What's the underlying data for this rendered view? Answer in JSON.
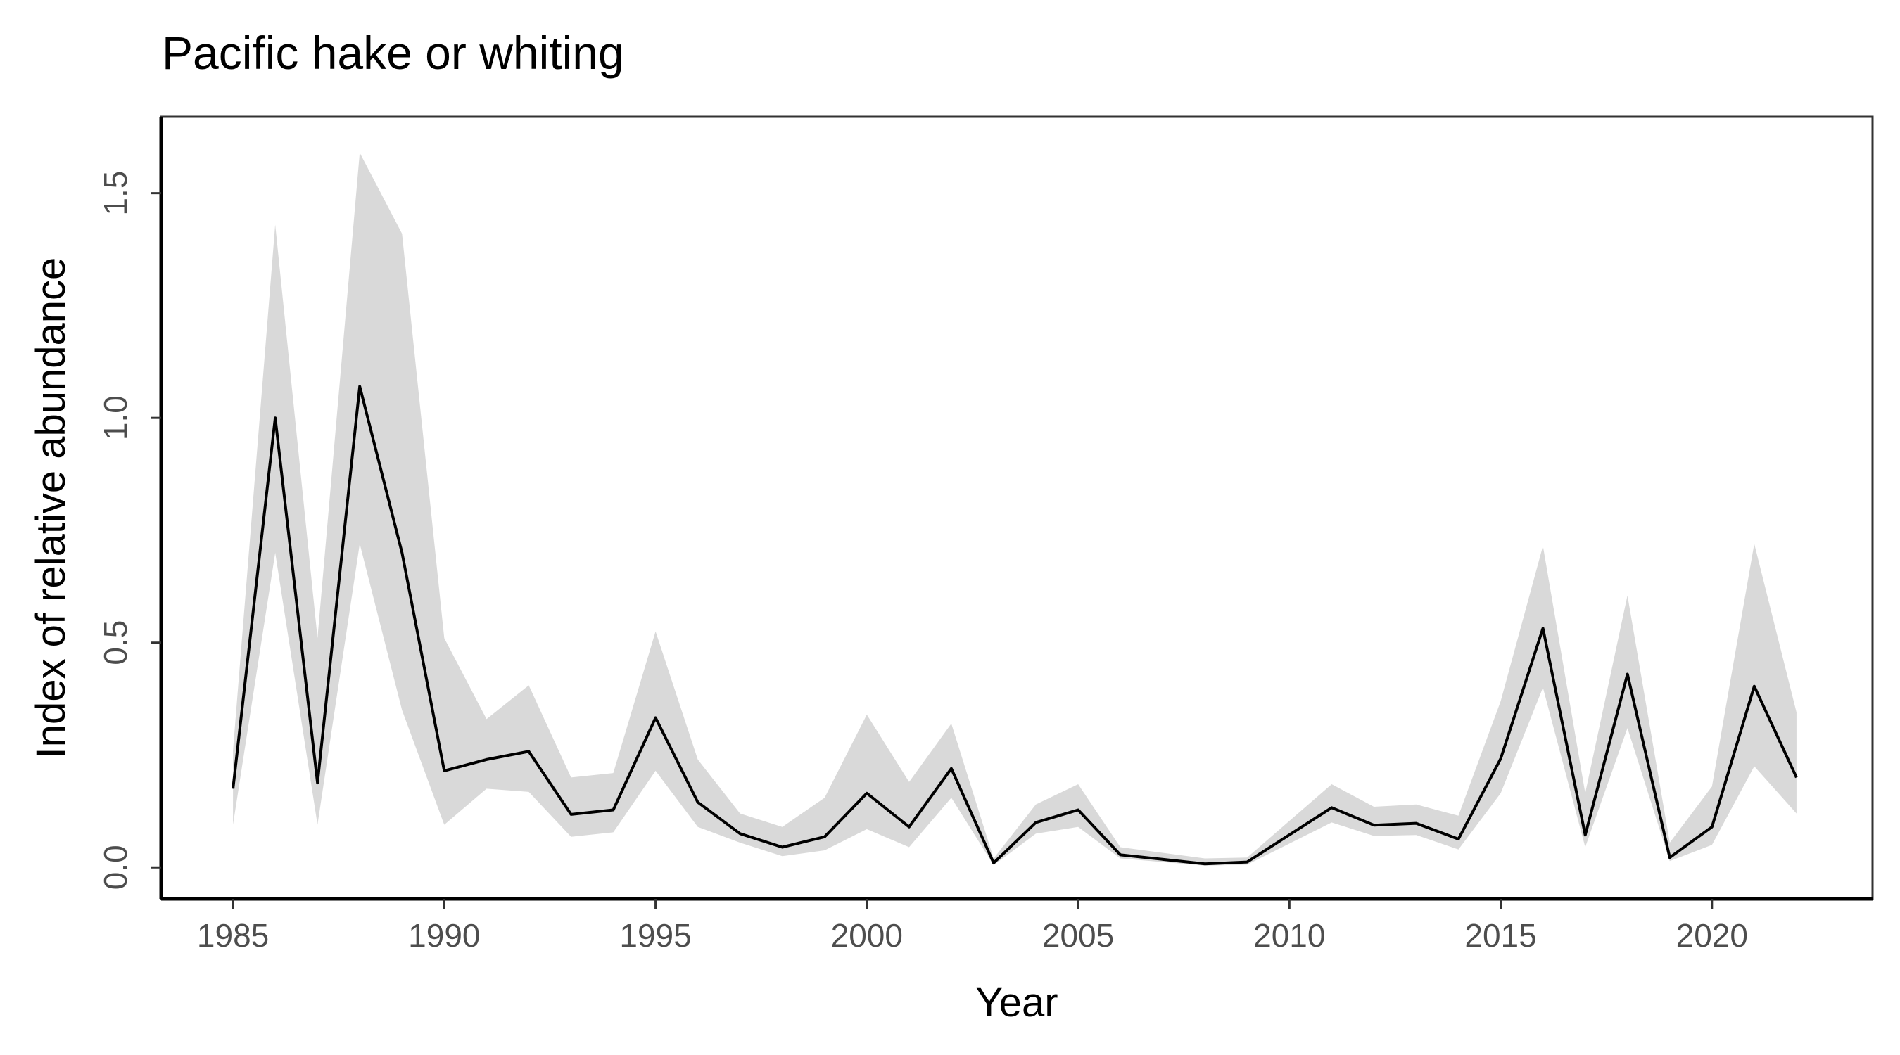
{
  "chart_data": {
    "type": "line",
    "title": "Pacific hake or whiting",
    "xlabel": "Year",
    "ylabel": "Index of relative abundance",
    "xlim": [
      1983.3,
      2023.8
    ],
    "ylim": [
      -0.07,
      1.67
    ],
    "x_ticks": [
      1985,
      1990,
      1995,
      2000,
      2005,
      2010,
      2015,
      2020
    ],
    "x_tick_labels": [
      "1985",
      "1990",
      "1995",
      "2000",
      "2005",
      "2010",
      "2015",
      "2020"
    ],
    "y_ticks": [
      0.0,
      0.5,
      1.0,
      1.5
    ],
    "y_tick_labels": [
      "0.0",
      "0.5",
      "1.0",
      "1.5"
    ],
    "grid": false,
    "legend": "none",
    "line_color": "#000000",
    "band_color": "#d9d9d9",
    "series": [
      {
        "x": [
          1985,
          1986,
          1987,
          1988,
          1989,
          1990,
          1991,
          1992,
          1993,
          1994,
          1995,
          1996,
          1997,
          1998,
          1999,
          2000,
          2001,
          2002,
          2003,
          2004,
          2005,
          2006,
          2008,
          2009,
          2011,
          2012,
          2013,
          2014,
          2015,
          2016,
          2017,
          2018,
          2019,
          2020,
          2021,
          2022
        ],
        "y": [
          0.175,
          1.0,
          0.188,
          1.07,
          0.7,
          0.215,
          0.24,
          0.258,
          0.118,
          0.128,
          0.333,
          0.145,
          0.075,
          0.045,
          0.068,
          0.165,
          0.09,
          0.22,
          0.01,
          0.1,
          0.128,
          0.028,
          0.008,
          0.012,
          0.133,
          0.094,
          0.098,
          0.063,
          0.242,
          0.532,
          0.072,
          0.43,
          0.022,
          0.09,
          0.403,
          0.2
        ],
        "lower": [
          0.095,
          0.7,
          0.095,
          0.72,
          0.35,
          0.095,
          0.175,
          0.168,
          0.068,
          0.078,
          0.215,
          0.09,
          0.055,
          0.025,
          0.038,
          0.085,
          0.045,
          0.155,
          0.005,
          0.075,
          0.09,
          0.02,
          0.004,
          0.006,
          0.1,
          0.07,
          0.072,
          0.04,
          0.165,
          0.4,
          0.045,
          0.31,
          0.014,
          0.05,
          0.225,
          0.12
        ],
        "upper": [
          0.26,
          1.43,
          0.51,
          1.59,
          1.41,
          0.51,
          0.33,
          0.405,
          0.2,
          0.21,
          0.525,
          0.24,
          0.12,
          0.09,
          0.155,
          0.34,
          0.19,
          0.32,
          0.02,
          0.14,
          0.185,
          0.045,
          0.02,
          0.022,
          0.185,
          0.135,
          0.14,
          0.115,
          0.37,
          0.715,
          0.165,
          0.605,
          0.055,
          0.18,
          0.72,
          0.345
        ]
      }
    ]
  }
}
